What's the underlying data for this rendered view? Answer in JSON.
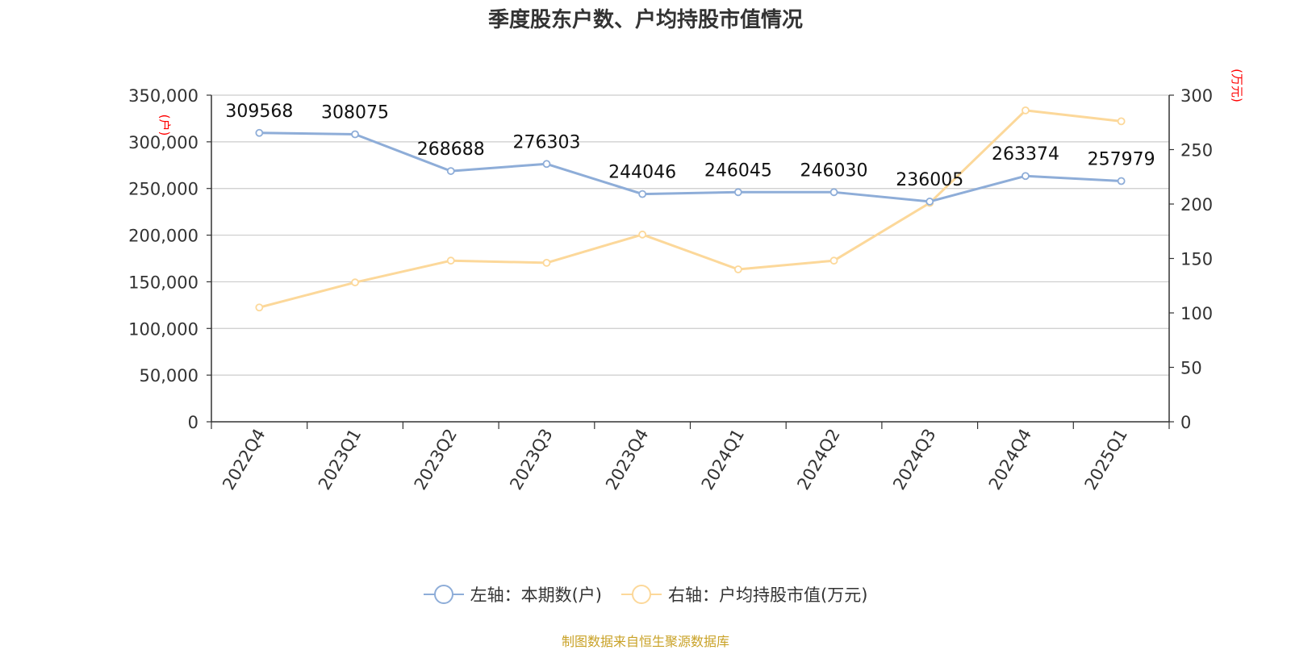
{
  "chart_data": {
    "type": "line",
    "title": "季度股东户数、户均持股市值情况",
    "categories": [
      "2022Q4",
      "2023Q1",
      "2023Q2",
      "2023Q3",
      "2023Q4",
      "2024Q1",
      "2024Q2",
      "2024Q3",
      "2024Q4",
      "2025Q1"
    ],
    "y_left": {
      "unit": "(户)",
      "ylim": [
        0,
        350000
      ],
      "ticks": [
        "0",
        "50,000",
        "100,000",
        "150,000",
        "200,000",
        "250,000",
        "300,000",
        "350,000"
      ]
    },
    "y_right": {
      "unit": "(万元)",
      "ylim": [
        0,
        300
      ],
      "ticks": [
        "0",
        "50",
        "100",
        "150",
        "200",
        "250",
        "300"
      ]
    },
    "grid": true,
    "legend_position": "bottom",
    "series": [
      {
        "name": "左轴：本期数(户)",
        "axis": "left",
        "color": "#8eadd8",
        "values": [
          309568,
          308075,
          268688,
          276303,
          244046,
          246045,
          246030,
          236005,
          263374,
          257979
        ],
        "labels": [
          "309568",
          "308075",
          "268688",
          "276303",
          "244046",
          "246045",
          "246030",
          "236005",
          "263374",
          "257979"
        ]
      },
      {
        "name": "右轴：户均持股市值(万元)",
        "axis": "right",
        "color": "#fcd89a",
        "values": [
          105,
          128,
          148,
          146,
          172,
          140,
          148,
          201,
          286,
          276
        ]
      }
    ],
    "source": "制图数据来自恒生聚源数据库"
  }
}
